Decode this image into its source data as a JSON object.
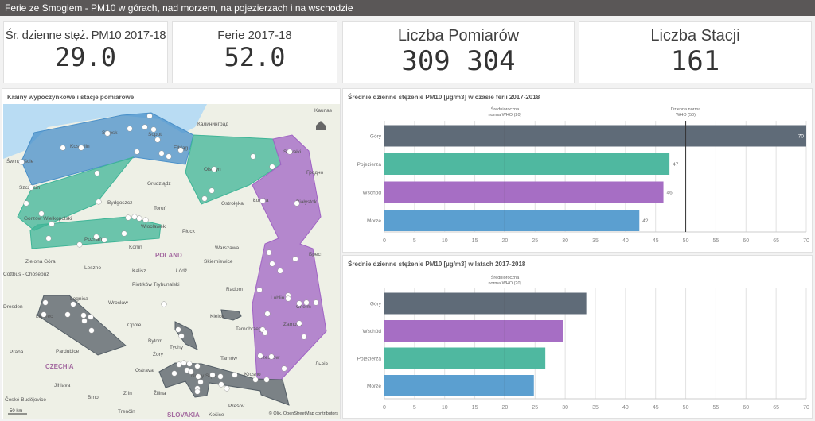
{
  "header": {
    "title": "Ferie ze Smogiem - PM10 w górach, nad morzem, na pojezierzach i na wschodzie"
  },
  "kpis": [
    {
      "label": "Śr. dzienne stęż. PM10 2017-18",
      "value": "29.0"
    },
    {
      "label": "Ferie 2017-18",
      "value": "52.0"
    },
    {
      "label": "Liczba Pomiarów",
      "value": "309 304"
    },
    {
      "label": "Liczba Stacji",
      "value": "161"
    }
  ],
  "map": {
    "title": "Krainy wypoczynkowe i stacje pomiarowe",
    "labels": [
      "Kaunas",
      "Калининград",
      "Słupsk",
      "Sopot",
      "Koszalin",
      "Elbląg",
      "Świnoujście",
      "Suwałki",
      "Olsztyn",
      "Гродно",
      "Szczecin",
      "Grudziądz",
      "Bydgoszcz",
      "Toruń",
      "Ostrołęka",
      "Łomża",
      "Białystok",
      "Gorzów Wielkopolski",
      "Włocławek",
      "Płock",
      "Poznań",
      "Konin",
      "POLAND",
      "Warszawa",
      "Брест",
      "Zielona Góra",
      "Leszno",
      "Skierniewice",
      "Kalisz",
      "Łódź",
      "Cottbus - Chóśebuz",
      "Piotrków Trybunalski",
      "Radom",
      "Lublin",
      "Legnica",
      "Wrocław",
      "Dresden",
      "Chełm",
      "Liberec",
      "Kielce",
      "Opole",
      "Zamość",
      "Tarnobrzeg",
      "Bytom",
      "Praha",
      "Pardubice",
      "Tychy",
      "Żory",
      "Tarnów",
      "Rzeszów",
      "CZECHIA",
      "Ostrava",
      "Nowy Sącz",
      "Krosno",
      "Львів",
      "Jihlava",
      "Brno",
      "Zlín",
      "Žilina",
      "Prešov",
      "České Budějovice",
      "Trenčín",
      "SLOVAKIA",
      "Košice"
    ],
    "scale": "50 km",
    "attribution": "© Qlik, OpenStreetMap contributors",
    "regions": [
      {
        "name": "Morze",
        "color": "#4a90c9"
      },
      {
        "name": "Pojezierza",
        "color": "#3fb597"
      },
      {
        "name": "Wschód",
        "color": "#a064c4"
      },
      {
        "name": "Góry",
        "color": "#545e66"
      }
    ]
  },
  "chart_data": [
    {
      "type": "bar",
      "title": "Średnie dzienne stężenie PM10 [µg/m3] w czasie ferii 2017-2018",
      "categories": [
        "Góry",
        "Pojezierza",
        "Wschód",
        "Morze"
      ],
      "values": [
        70,
        47.3,
        46.3,
        42.3
      ],
      "data_labels": [
        "70",
        "47",
        "46",
        "42"
      ],
      "colors": [
        "#5f6b78",
        "#4fb8a0",
        "#a66ec4",
        "#5b9fd0"
      ],
      "xlim": [
        0,
        70
      ],
      "xticks": [
        0,
        5,
        10,
        15,
        20,
        25,
        30,
        35,
        40,
        45,
        50,
        55,
        60,
        65,
        70
      ],
      "reference_lines": [
        {
          "value": 20,
          "label1": "Średnioroczna",
          "label2": "norma WHO (20)"
        },
        {
          "value": 50,
          "label1": "Dzienna norma",
          "label2": "WHO (50)"
        }
      ]
    },
    {
      "type": "bar",
      "title": "Średnie dzienne stężenie PM10 [µg/m3] w latach 2017-2018",
      "categories": [
        "Góry",
        "Wschód",
        "Pojezierza",
        "Morze"
      ],
      "values": [
        33.5,
        29.6,
        26.7,
        24.8
      ],
      "data_labels": [
        "",
        "",
        "",
        ""
      ],
      "colors": [
        "#5f6b78",
        "#a66ec4",
        "#4fb8a0",
        "#5b9fd0"
      ],
      "xlim": [
        0,
        70
      ],
      "xticks": [
        0,
        5,
        10,
        15,
        20,
        25,
        30,
        35,
        40,
        45,
        50,
        55,
        60,
        65,
        70
      ],
      "reference_lines": [
        {
          "value": 20,
          "label1": "Średnioroczna",
          "label2": "norma WHO (20)"
        }
      ]
    }
  ]
}
